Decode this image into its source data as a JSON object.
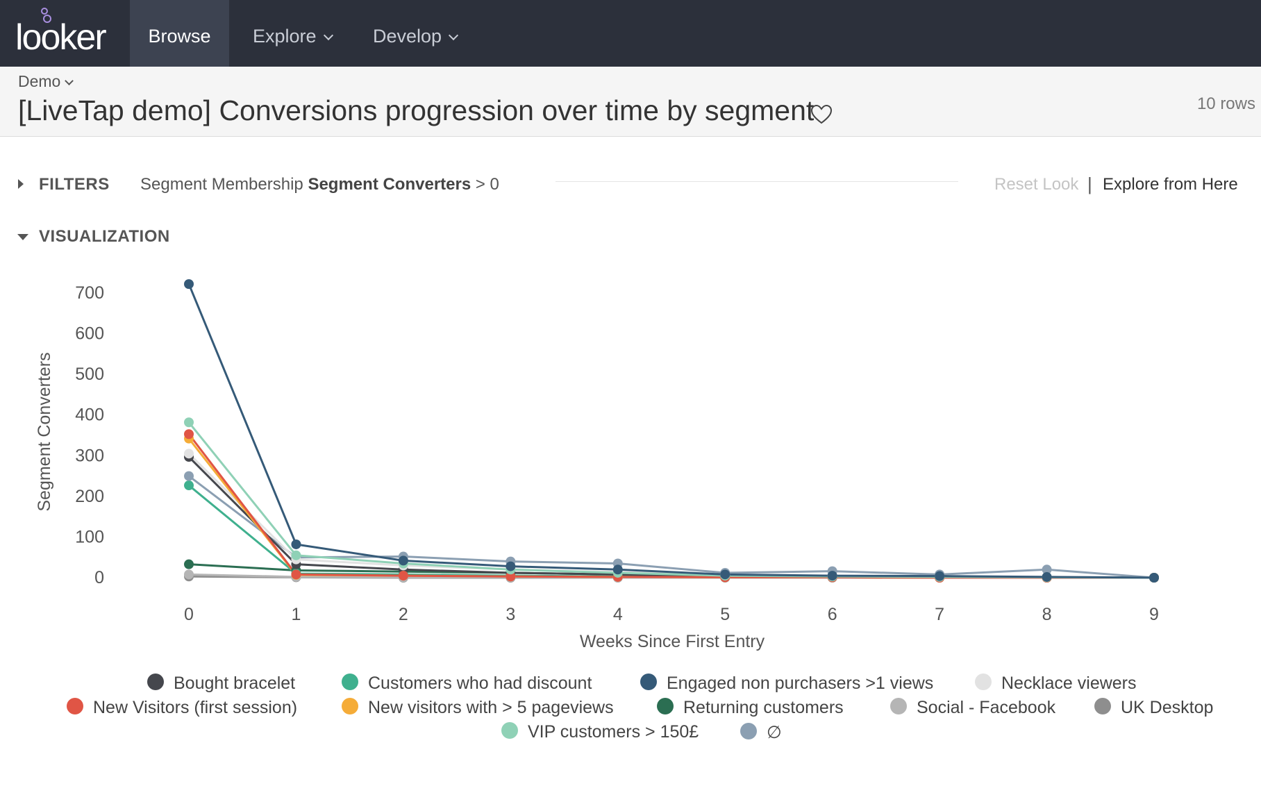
{
  "nav": {
    "logo": "looker",
    "items": [
      {
        "label": "Browse",
        "active": true
      },
      {
        "label": "Explore",
        "active": false
      },
      {
        "label": "Develop",
        "active": false
      }
    ]
  },
  "header": {
    "breadcrumb": "Demo",
    "title": "[LiveTap demo] Conversions progression over time by segment",
    "rows": "10 rows"
  },
  "filters": {
    "label": "FILTERS",
    "field_prefix": "Segment Membership ",
    "field_name": "Segment Converters",
    "condition": " > 0",
    "reset": "Reset Look",
    "separator": "|",
    "explore": "Explore from Here"
  },
  "visualization": {
    "label": "VISUALIZATION"
  },
  "chart_data": {
    "type": "line",
    "xlabel": "Weeks Since First Entry",
    "ylabel": "Segment Converters",
    "x": [
      0,
      1,
      2,
      3,
      4,
      5,
      6,
      7,
      8,
      9
    ],
    "ylim": [
      0,
      700
    ],
    "yticks": [
      0,
      100,
      200,
      300,
      400,
      500,
      600,
      700
    ],
    "legend_position": "bottom",
    "series": [
      {
        "name": "Bought bracelet",
        "color": "#45474d",
        "values": [
          297,
          33,
          20,
          12,
          8,
          3,
          2,
          1,
          1,
          0
        ]
      },
      {
        "name": "Customers who had discount",
        "color": "#3fb08e",
        "values": [
          227,
          10,
          8,
          5,
          3,
          1,
          1,
          0,
          0,
          0
        ]
      },
      {
        "name": "Engaged non purchasers >1 views",
        "color": "#355a78",
        "values": [
          722,
          82,
          42,
          28,
          20,
          8,
          5,
          4,
          2,
          0
        ]
      },
      {
        "name": "Necklace viewers",
        "color": "#e2e2e2",
        "values": [
          305,
          45,
          30,
          20,
          14,
          6,
          4,
          3,
          2,
          0
        ]
      },
      {
        "name": "New Visitors (first session)",
        "color": "#e05545",
        "values": [
          353,
          8,
          5,
          3,
          2,
          1,
          1,
          0,
          0,
          0
        ]
      },
      {
        "name": "New visitors with > 5 pageviews",
        "color": "#f5ac38",
        "values": [
          342,
          7,
          5,
          3,
          2,
          1,
          1,
          0,
          0,
          0
        ]
      },
      {
        "name": "Returning customers",
        "color": "#2b6e52",
        "values": [
          33,
          18,
          15,
          12,
          8,
          3,
          2,
          1,
          1,
          0
        ]
      },
      {
        "name": "Social - Facebook",
        "color": "#b5b5b5",
        "values": [
          8,
          2,
          1,
          1,
          0,
          0,
          0,
          0,
          0,
          0
        ]
      },
      {
        "name": "UK Desktop",
        "color": "#8e8e8e",
        "values": [
          3,
          1,
          0,
          0,
          0,
          0,
          0,
          0,
          0,
          0
        ]
      },
      {
        "name": "VIP customers > 150£",
        "color": "#8fd1b6",
        "values": [
          382,
          55,
          35,
          20,
          12,
          5,
          3,
          2,
          1,
          0
        ]
      },
      {
        "name": "∅",
        "color": "#8b9fb2",
        "values": [
          250,
          50,
          52,
          40,
          35,
          12,
          16,
          8,
          20,
          0
        ]
      }
    ]
  }
}
